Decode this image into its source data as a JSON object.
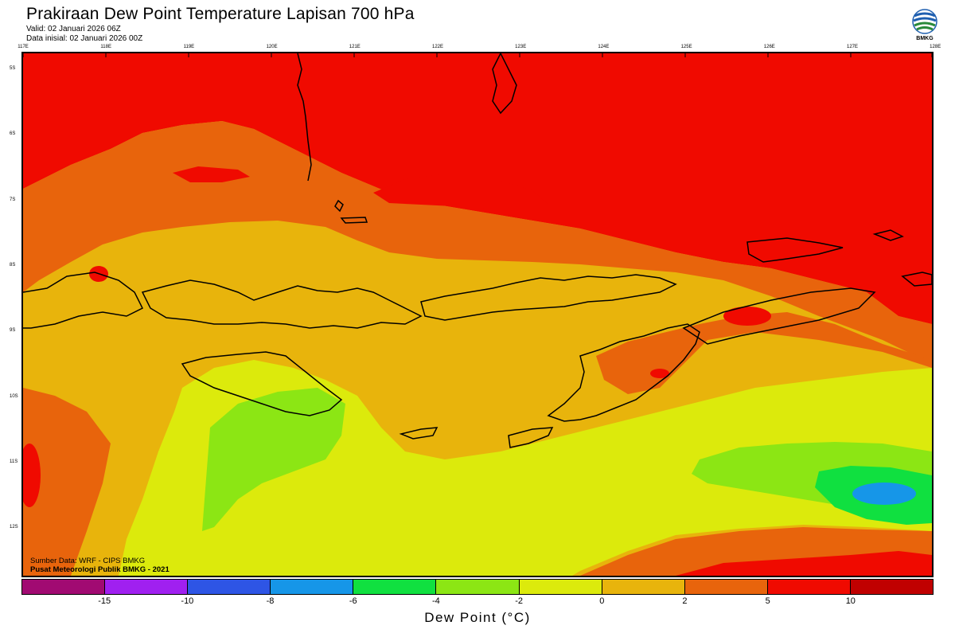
{
  "header": {
    "title": "Prakiraan Dew Point Temperature Lapisan 700 hPa",
    "valid": "Valid: 02 Januari 2026 06Z",
    "init": "Data inisial: 02 Januari 2026 00Z"
  },
  "logo": {
    "text": "BMKG",
    "icon": "bmkg-logo-icon"
  },
  "axes": {
    "lon_labels": [
      "117E",
      "118E",
      "119E",
      "120E",
      "121E",
      "122E",
      "123E",
      "124E",
      "125E",
      "126E",
      "127E",
      "128E"
    ],
    "lat_labels": [
      "5S",
      "6S",
      "7S",
      "8S",
      "9S",
      "10S",
      "11S",
      "12S"
    ]
  },
  "source": {
    "line1": "Sumber Data: WRF - CIPS BMKG",
    "line2": "Pusat Meteorologi Publik BMKG - 2021"
  },
  "colorbar": {
    "colors": [
      "#a10a72",
      "#a020f0",
      "#2e55e5",
      "#1696e8",
      "#10e040",
      "#8ce614",
      "#dcea0c",
      "#e8b40c",
      "#e8640c",
      "#f00a00",
      "#c00000"
    ],
    "ticks": [
      "-15",
      "-10",
      "-8",
      "-6",
      "-4",
      "-2",
      "0",
      "2",
      "5",
      "10"
    ],
    "label": "Dew Point (°C)"
  }
}
